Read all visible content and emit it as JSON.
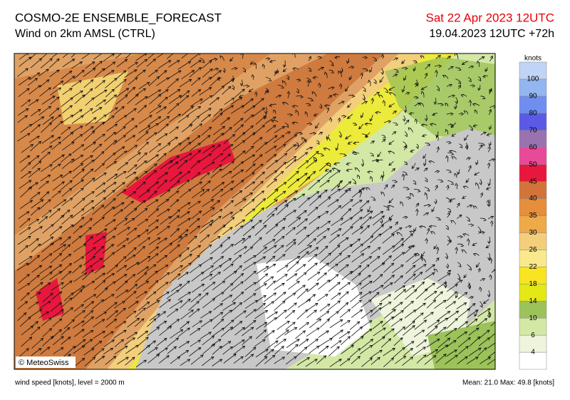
{
  "header": {
    "title": "COSMO-2E ENSEMBLE_FORECAST",
    "subtitle": "Wind on 2km AMSL (CTRL)",
    "valid_time": "Sat 22 Apr 2023 12UTC",
    "run_time": "19.04.2023 12UTC +72h"
  },
  "legend": {
    "unit": "knots",
    "levels": [
      4,
      6,
      10,
      14,
      18,
      22,
      26,
      30,
      35,
      40,
      45,
      50,
      60,
      70,
      80,
      90,
      100
    ],
    "colors": [
      "#ffffff",
      "#eef5dc",
      "#d4e8a6",
      "#9cc25a",
      "#e4e814",
      "#f8e420",
      "#fae98c",
      "#f3cf7c",
      "#eeaa48",
      "#e58e3c",
      "#d2733a",
      "#e8173d",
      "#e84a98",
      "#9a72b0",
      "#5a5ae6",
      "#6e8ef0",
      "#94b6f0",
      "#c0d4f6"
    ]
  },
  "credit": "© MeteoSwiss",
  "footer": {
    "left": "wind speed [knots], level = 2000 m",
    "right": "Mean:  21.0 Max:  49.8 [knots]"
  }
}
